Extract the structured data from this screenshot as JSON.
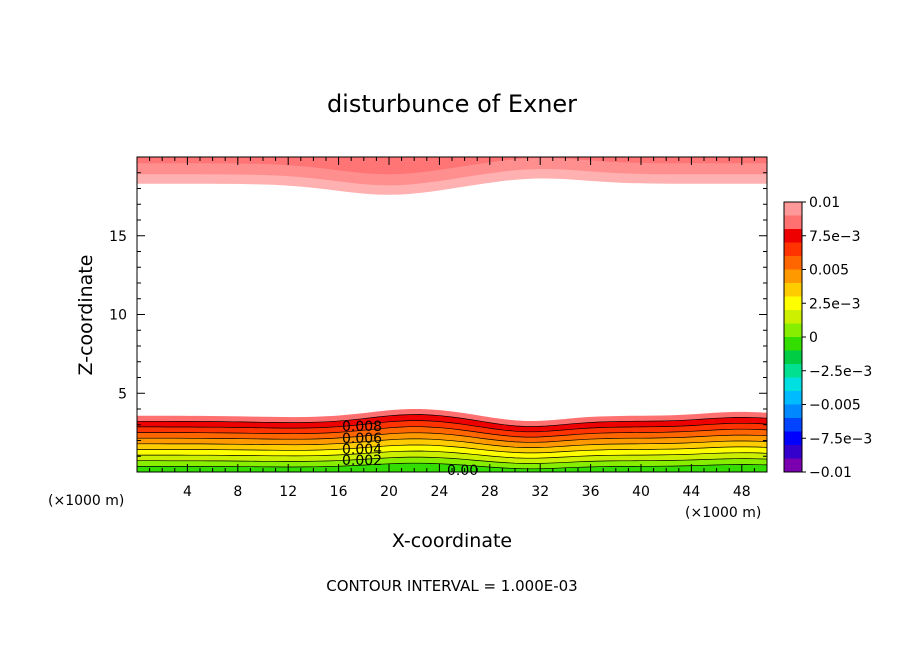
{
  "chart_data": {
    "type": "heatmap",
    "title": "disturbunce of Exner",
    "xlabel": "X-coordinate",
    "ylabel": "Z-coordinate",
    "x_unit": "(×1000 m)",
    "x_unit_right": "(×1000 m)",
    "xlim": [
      0,
      50
    ],
    "ylim": [
      0,
      20
    ],
    "x_ticks": [
      4,
      8,
      12,
      16,
      20,
      24,
      28,
      32,
      36,
      40,
      44,
      48
    ],
    "y_ticks": [
      5,
      10,
      15
    ],
    "footer": "CONTOUR INTERVAL = 1.000E-03",
    "colorbar": {
      "min": -0.01,
      "max": 0.01,
      "labels": [
        "0.01",
        "7.5e−3",
        "0.005",
        "2.5e−3",
        "0",
        "−2.5e−3",
        "−0.005",
        "−7.5e−3",
        "−0.01"
      ],
      "colors": [
        "#7a00b0",
        "#3300cc",
        "#0000ff",
        "#0044ff",
        "#0088ff",
        "#00bbff",
        "#00e0e0",
        "#00e090",
        "#00cc44",
        "#33dd00",
        "#88ee00",
        "#ccf000",
        "#ffff00",
        "#ffcc00",
        "#ff9900",
        "#ff6600",
        "#ff3300",
        "#ee0000",
        "#ff7070",
        "#ff9898"
      ]
    },
    "bottom_band": {
      "levels": [
        0.001,
        0.002,
        0.003,
        0.004,
        0.005,
        0.006,
        0.007,
        0.008,
        0.009
      ],
      "labeled_levels": [
        "0.008",
        "0.006",
        "0.004",
        "0.002",
        "0.00"
      ],
      "mean_height_of_top_contour_km": 3.5
    },
    "top_band": {
      "value": "0.01",
      "lower_edge_km": 18.3
    },
    "grid": false,
    "legend": "colorbar-right"
  }
}
